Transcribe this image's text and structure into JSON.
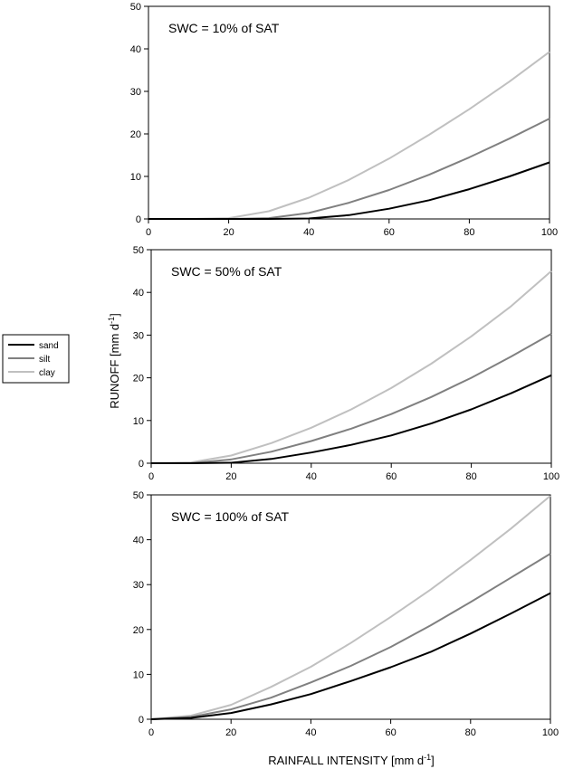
{
  "chart_data": {
    "type": "line",
    "xlabel": "RAINFALL INTENSITY [mm d",
    "xlabel_sup": "-1",
    "xlabel_end": "]",
    "ylabel": "RUNOFF [mm d",
    "ylabel_sup": "-1",
    "ylabel_end": "]",
    "legend": {
      "placement": "left",
      "entries": [
        {
          "name": "sand",
          "color": "#000000"
        },
        {
          "name": "silt",
          "color": "#808080"
        },
        {
          "name": "clay",
          "color": "#c0c0c0"
        }
      ]
    },
    "panels": [
      {
        "annotation": "SWC = 10% of SAT",
        "xlim": [
          0,
          100
        ],
        "ylim": [
          0,
          50
        ],
        "xticks": [
          0,
          20,
          40,
          60,
          80,
          100
        ],
        "yticks": [
          0,
          10,
          20,
          30,
          40,
          50
        ],
        "x": [
          0,
          10,
          20,
          30,
          40,
          50,
          60,
          70,
          80,
          90,
          100
        ],
        "series": [
          {
            "name": "sand",
            "values": [
              0,
              0,
              0,
              0,
              0.1,
              0.9,
              2.4,
              4.4,
              7.0,
              10.0,
              13.3
            ]
          },
          {
            "name": "silt",
            "values": [
              0,
              0,
              0,
              0.2,
              1.4,
              3.8,
              6.8,
              10.4,
              14.5,
              18.9,
              23.6
            ]
          },
          {
            "name": "clay",
            "values": [
              0,
              0,
              0.2,
              1.8,
              5.0,
              9.2,
              14.2,
              19.8,
              25.8,
              32.3,
              39.3
            ]
          }
        ]
      },
      {
        "annotation": "SWC = 50% of SAT",
        "xlim": [
          0,
          100
        ],
        "ylim": [
          0,
          50
        ],
        "xticks": [
          0,
          20,
          40,
          60,
          80,
          100
        ],
        "yticks": [
          0,
          10,
          20,
          30,
          40,
          50
        ],
        "x": [
          0,
          10,
          20,
          30,
          40,
          50,
          60,
          70,
          80,
          90,
          100
        ],
        "series": [
          {
            "name": "sand",
            "values": [
              0,
              0,
              0.1,
              1.0,
              2.5,
              4.3,
              6.5,
              9.3,
              12.6,
              16.4,
              20.6
            ]
          },
          {
            "name": "silt",
            "values": [
              0,
              0,
              0.9,
              2.7,
              5.2,
              8.1,
              11.5,
              15.5,
              20.0,
              25.0,
              30.3
            ]
          },
          {
            "name": "clay",
            "values": [
              0,
              0.2,
              1.8,
              4.7,
              8.3,
              12.6,
              17.6,
              23.3,
              29.7,
              36.8,
              45.0
            ]
          }
        ]
      },
      {
        "annotation": "SWC = 100% of SAT",
        "xlim": [
          0,
          100
        ],
        "ylim": [
          0,
          50
        ],
        "xticks": [
          0,
          20,
          40,
          60,
          80,
          100
        ],
        "yticks": [
          0,
          10,
          20,
          30,
          40,
          50
        ],
        "x": [
          0,
          10,
          20,
          30,
          40,
          50,
          60,
          70,
          80,
          90,
          100
        ],
        "series": [
          {
            "name": "sand",
            "values": [
              0,
              0.3,
              1.4,
              3.3,
              5.6,
              8.5,
              11.6,
              15.0,
              19.1,
              23.5,
              28.1
            ]
          },
          {
            "name": "silt",
            "values": [
              0,
              0.5,
              2.2,
              4.8,
              8.2,
              11.9,
              16.1,
              20.9,
              26.1,
              31.5,
              36.9
            ]
          },
          {
            "name": "clay",
            "values": [
              0,
              0.8,
              3.2,
              7.2,
              11.7,
              17.0,
              22.8,
              28.9,
              35.5,
              42.4,
              49.8
            ]
          }
        ]
      }
    ]
  }
}
